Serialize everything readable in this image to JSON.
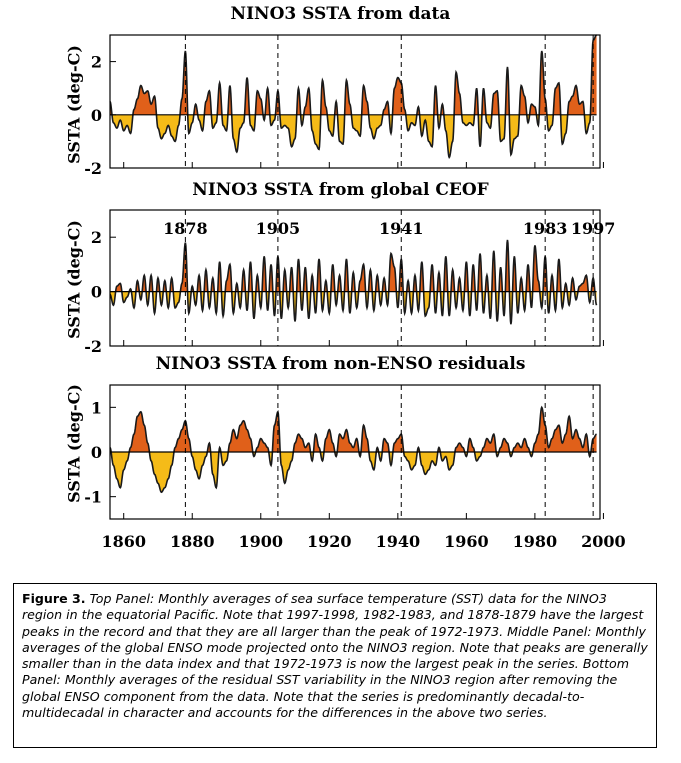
{
  "chart_data": [
    {
      "type": "area",
      "title": "NINO3 SSTA from data",
      "ylabel": "SSTA (deg-C)",
      "ylim": [
        -2,
        3
      ],
      "yticks": [
        2,
        0,
        -2
      ],
      "xlim": [
        1856,
        1999
      ],
      "markers": [
        1878,
        1905,
        1941,
        1983,
        1997
      ],
      "marker_labels": [],
      "x": [
        1856,
        1857,
        1858,
        1859,
        1860,
        1861,
        1862,
        1863,
        1864,
        1865,
        1866,
        1867,
        1868,
        1869,
        1870,
        1871,
        1872,
        1873,
        1874,
        1875,
        1876,
        1877,
        1878,
        1879,
        1880,
        1881,
        1882,
        1883,
        1884,
        1885,
        1886,
        1887,
        1888,
        1889,
        1890,
        1891,
        1892,
        1893,
        1894,
        1895,
        1896,
        1897,
        1898,
        1899,
        1900,
        1901,
        1902,
        1903,
        1904,
        1905,
        1906,
        1907,
        1908,
        1909,
        1910,
        1911,
        1912,
        1913,
        1914,
        1915,
        1916,
        1917,
        1918,
        1919,
        1920,
        1921,
        1922,
        1923,
        1924,
        1925,
        1926,
        1927,
        1928,
        1929,
        1930,
        1931,
        1932,
        1933,
        1934,
        1935,
        1936,
        1937,
        1938,
        1939,
        1940,
        1941,
        1942,
        1943,
        1944,
        1945,
        1946,
        1947,
        1948,
        1949,
        1950,
        1951,
        1952,
        1953,
        1954,
        1955,
        1956,
        1957,
        1958,
        1959,
        1960,
        1961,
        1962,
        1963,
        1964,
        1965,
        1966,
        1967,
        1968,
        1969,
        1970,
        1971,
        1972,
        1973,
        1974,
        1975,
        1976,
        1977,
        1978,
        1979,
        1980,
        1981,
        1982,
        1983,
        1984,
        1985,
        1986,
        1987,
        1988,
        1989,
        1990,
        1991,
        1992,
        1993,
        1994,
        1995,
        1996,
        1997,
        1998
      ],
      "values": [
        0.5,
        -0.3,
        -0.5,
        -0.2,
        -0.6,
        -0.4,
        -0.7,
        0.2,
        0.6,
        1.1,
        0.8,
        0.9,
        0.4,
        0.7,
        -0.5,
        -0.9,
        -0.7,
        -0.4,
        -0.8,
        -1.0,
        -0.4,
        0.6,
        2.4,
        -0.7,
        -0.3,
        0.4,
        -0.2,
        -0.6,
        0.5,
        0.9,
        -0.5,
        -0.3,
        1.2,
        -0.4,
        -0.6,
        1.1,
        -0.9,
        -1.4,
        -0.5,
        -0.3,
        1.4,
        -0.4,
        -0.6,
        0.9,
        0.6,
        -0.2,
        1.0,
        -0.4,
        -0.2,
        0.9,
        -0.5,
        -0.4,
        -0.5,
        -1.2,
        -0.9,
        1.0,
        -0.4,
        0.3,
        1.0,
        -0.6,
        -1.1,
        -1.3,
        1.3,
        0.3,
        -0.6,
        -0.8,
        0.5,
        -1.0,
        -1.1,
        1.3,
        0.4,
        -0.5,
        -0.6,
        -0.8,
        1.1,
        0.5,
        -0.5,
        -0.9,
        -0.5,
        -0.4,
        0.2,
        0.5,
        -0.7,
        1.0,
        1.4,
        1.2,
        0.2,
        -0.6,
        -0.3,
        -0.4,
        0.3,
        -0.8,
        -0.2,
        -1.0,
        -1.2,
        1.1,
        -0.5,
        0.4,
        -0.6,
        -1.6,
        -1.0,
        1.6,
        0.8,
        -0.3,
        -0.4,
        -0.3,
        -0.4,
        1.0,
        -1.2,
        1.0,
        -0.3,
        -0.5,
        0.8,
        0.9,
        -1.0,
        -0.9,
        1.8,
        -1.5,
        -0.9,
        -0.8,
        1.1,
        0.7,
        -0.3,
        0.4,
        0.3,
        -0.4,
        2.4,
        0.6,
        -0.6,
        -0.4,
        1.0,
        1.2,
        -1.1,
        -0.7,
        0.5,
        0.7,
        1.1,
        0.4,
        0.5,
        -0.7,
        -0.3,
        2.8,
        3.0
      ]
    },
    {
      "type": "area",
      "title": "NINO3 SSTA from global CEOF",
      "ylabel": "SSTA (deg-C)",
      "ylim": [
        -2,
        3
      ],
      "yticks": [
        2,
        0,
        -2
      ],
      "xlim": [
        1856,
        1999
      ],
      "markers": [
        1878,
        1905,
        1941,
        1983,
        1997
      ],
      "marker_labels": [
        "1878",
        "1905",
        "1941",
        "1983",
        "1997"
      ],
      "x": [
        1856,
        1857,
        1858,
        1859,
        1860,
        1861,
        1862,
        1863,
        1864,
        1865,
        1866,
        1867,
        1868,
        1869,
        1870,
        1871,
        1872,
        1873,
        1874,
        1875,
        1876,
        1877,
        1878,
        1879,
        1880,
        1881,
        1882,
        1883,
        1884,
        1885,
        1886,
        1887,
        1888,
        1889,
        1890,
        1891,
        1892,
        1893,
        1894,
        1895,
        1896,
        1897,
        1898,
        1899,
        1900,
        1901,
        1902,
        1903,
        1904,
        1905,
        1906,
        1907,
        1908,
        1909,
        1910,
        1911,
        1912,
        1913,
        1914,
        1915,
        1916,
        1917,
        1918,
        1919,
        1920,
        1921,
        1922,
        1923,
        1924,
        1925,
        1926,
        1927,
        1928,
        1929,
        1930,
        1931,
        1932,
        1933,
        1934,
        1935,
        1936,
        1937,
        1938,
        1939,
        1940,
        1941,
        1942,
        1943,
        1944,
        1945,
        1946,
        1947,
        1948,
        1949,
        1950,
        1951,
        1952,
        1953,
        1954,
        1955,
        1956,
        1957,
        1958,
        1959,
        1960,
        1961,
        1962,
        1963,
        1964,
        1965,
        1966,
        1967,
        1968,
        1969,
        1970,
        1971,
        1972,
        1973,
        1974,
        1975,
        1976,
        1977,
        1978,
        1979,
        1980,
        1981,
        1982,
        1983,
        1984,
        1985,
        1986,
        1987,
        1988,
        1989,
        1990,
        1991,
        1992,
        1993,
        1994,
        1995,
        1996,
        1997,
        1998
      ],
      "values": [
        -0.1,
        -0.5,
        0.2,
        0.3,
        -0.4,
        -0.2,
        0.1,
        -0.6,
        0.4,
        -0.3,
        0.6,
        -0.5,
        0.6,
        -0.8,
        0.5,
        -0.5,
        0.4,
        -0.6,
        0.5,
        -0.6,
        -0.4,
        0.3,
        1.8,
        -0.8,
        0.2,
        -0.5,
        0.6,
        -0.7,
        0.8,
        -0.6,
        0.5,
        -0.8,
        1.1,
        -0.9,
        0.4,
        1.0,
        -0.8,
        0.3,
        -0.6,
        0.8,
        -0.7,
        1.1,
        -1.0,
        0.6,
        -0.6,
        1.3,
        -0.7,
        1.0,
        -0.9,
        1.3,
        -1.0,
        0.8,
        -0.6,
        0.9,
        -1.1,
        1.2,
        -0.7,
        0.9,
        -1.0,
        0.6,
        -0.8,
        1.2,
        -0.7,
        0.4,
        -0.8,
        1.0,
        -0.5,
        0.6,
        -0.7,
        1.2,
        -0.8,
        0.7,
        -0.6,
        0.4,
        1.0,
        -0.6,
        0.8,
        -0.7,
        0.6,
        -0.5,
        0.5,
        -0.5,
        1.4,
        0.9,
        -0.6,
        1.2,
        -0.8,
        0.4,
        -0.8,
        0.6,
        -0.7,
        1.1,
        -0.9,
        -0.6,
        1.0,
        -0.8,
        0.7,
        -0.9,
        1.3,
        -0.9,
        0.8,
        -0.6,
        0.5,
        -0.7,
        1.1,
        -0.9,
        1.0,
        -0.7,
        1.4,
        -0.8,
        0.6,
        -1.0,
        1.5,
        -1.1,
        0.9,
        -0.9,
        1.9,
        -1.2,
        1.3,
        -0.8,
        0.5,
        -0.7,
        1.0,
        -0.6,
        1.7,
        0.4,
        -0.6,
        1.3,
        -0.8,
        0.6,
        -0.7,
        1.2,
        -0.6,
        0.3,
        -0.5,
        0.5,
        -0.3,
        0.2,
        0.3,
        0.6,
        -0.4,
        0.5,
        -0.5
      ]
    },
    {
      "type": "area",
      "title": "NINO3 SSTA from non-ENSO residuals",
      "ylabel": "SSTA (deg-C)",
      "ylim": [
        -1.5,
        1.5
      ],
      "yticks": [
        1,
        0,
        -1
      ],
      "xlim": [
        1856,
        1999
      ],
      "xticks": [
        1860,
        1880,
        1900,
        1920,
        1940,
        1960,
        1980,
        2000
      ],
      "markers": [
        1878,
        1905,
        1941,
        1983,
        1997
      ],
      "marker_labels": [],
      "x": [
        1856,
        1857,
        1858,
        1859,
        1860,
        1861,
        1862,
        1863,
        1864,
        1865,
        1866,
        1867,
        1868,
        1869,
        1870,
        1871,
        1872,
        1873,
        1874,
        1875,
        1876,
        1877,
        1878,
        1879,
        1880,
        1881,
        1882,
        1883,
        1884,
        1885,
        1886,
        1887,
        1888,
        1889,
        1890,
        1891,
        1892,
        1893,
        1894,
        1895,
        1896,
        1897,
        1898,
        1899,
        1900,
        1901,
        1902,
        1903,
        1904,
        1905,
        1906,
        1907,
        1908,
        1909,
        1910,
        1911,
        1912,
        1913,
        1914,
        1915,
        1916,
        1917,
        1918,
        1919,
        1920,
        1921,
        1922,
        1923,
        1924,
        1925,
        1926,
        1927,
        1928,
        1929,
        1930,
        1931,
        1932,
        1933,
        1934,
        1935,
        1936,
        1937,
        1938,
        1939,
        1940,
        1941,
        1942,
        1943,
        1944,
        1945,
        1946,
        1947,
        1948,
        1949,
        1950,
        1951,
        1952,
        1953,
        1954,
        1955,
        1956,
        1957,
        1958,
        1959,
        1960,
        1961,
        1962,
        1963,
        1964,
        1965,
        1966,
        1967,
        1968,
        1969,
        1970,
        1971,
        1972,
        1973,
        1974,
        1975,
        1976,
        1977,
        1978,
        1979,
        1980,
        1981,
        1982,
        1983,
        1984,
        1985,
        1986,
        1987,
        1988,
        1989,
        1990,
        1991,
        1992,
        1993,
        1994,
        1995,
        1996,
        1997,
        1998
      ],
      "values": [
        0.1,
        -0.3,
        -0.6,
        -0.8,
        -0.4,
        -0.2,
        0.1,
        0.4,
        0.8,
        0.9,
        0.6,
        0.2,
        -0.2,
        -0.5,
        -0.7,
        -0.9,
        -0.8,
        -0.6,
        -0.3,
        0.1,
        0.3,
        0.5,
        0.7,
        0.3,
        -0.1,
        -0.4,
        -0.6,
        -0.3,
        -0.1,
        0.2,
        -0.5,
        -0.8,
        0.1,
        -0.3,
        -0.2,
        0.2,
        0.5,
        0.3,
        0.6,
        0.7,
        0.5,
        0.3,
        -0.1,
        0.1,
        0.3,
        0.2,
        0.1,
        -0.3,
        0.6,
        0.9,
        -0.3,
        -0.7,
        -0.4,
        -0.2,
        0.2,
        0.4,
        0.3,
        0.1,
        0.2,
        -0.2,
        0.4,
        0.1,
        -0.2,
        0.3,
        0.5,
        0.2,
        -0.1,
        0.4,
        0.3,
        0.5,
        0.2,
        0.1,
        0.3,
        -0.1,
        0.6,
        0.3,
        -0.2,
        -0.4,
        0.1,
        -0.2,
        0.3,
        0.2,
        -0.3,
        0.2,
        0.3,
        0.4,
        -0.1,
        -0.2,
        -0.4,
        -0.3,
        0.1,
        -0.3,
        -0.5,
        -0.4,
        -0.2,
        -0.3,
        0.1,
        -0.2,
        -0.1,
        -0.4,
        -0.3,
        0.1,
        0.2,
        0.1,
        -0.1,
        0.3,
        0.1,
        -0.2,
        -0.1,
        0.1,
        0.3,
        0.2,
        0.4,
        -0.1,
        0.1,
        0.3,
        0.2,
        -0.1,
        0.1,
        0.2,
        0.1,
        0.3,
        0.1,
        -0.1,
        0.2,
        0.4,
        1.0,
        0.6,
        0.1,
        0.3,
        0.5,
        0.6,
        0.2,
        0.4,
        0.8,
        0.3,
        0.5,
        0.3,
        0.1,
        0.4,
        -0.1,
        0.3,
        0.4
      ]
    }
  ],
  "caption": {
    "figure_label": "Figure 3.",
    "top_label": "Top Panel:",
    "top_text": "Monthly averages of sea surface temperature (SST) data for the NINO3 region in the equatorial Pacific. Note that 1997-1998, 1982-1983, and 1878-1879 have the largest peaks in the record and that they are all larger than the peak of 1972-1973.",
    "middle_label": "Middle Panel:",
    "middle_text": "Monthly averages of the global ENSO mode projected onto the NINO3 region. Note that peaks are generally smaller than in the data index and that 1972-1973 is now the largest peak in the series.",
    "bottom_label": "Bottom Panel:",
    "bottom_text": "Monthly averages of the residual SST variability in the NINO3 region after removing the global ENSO component from the data. Note that the series is predominantly decadal-to-multidecadal in character and accounts for the differences in the above two series."
  },
  "colors": {
    "positive": "#e0601a",
    "negative": "#f5bb18",
    "line": "#1a1a1a"
  }
}
